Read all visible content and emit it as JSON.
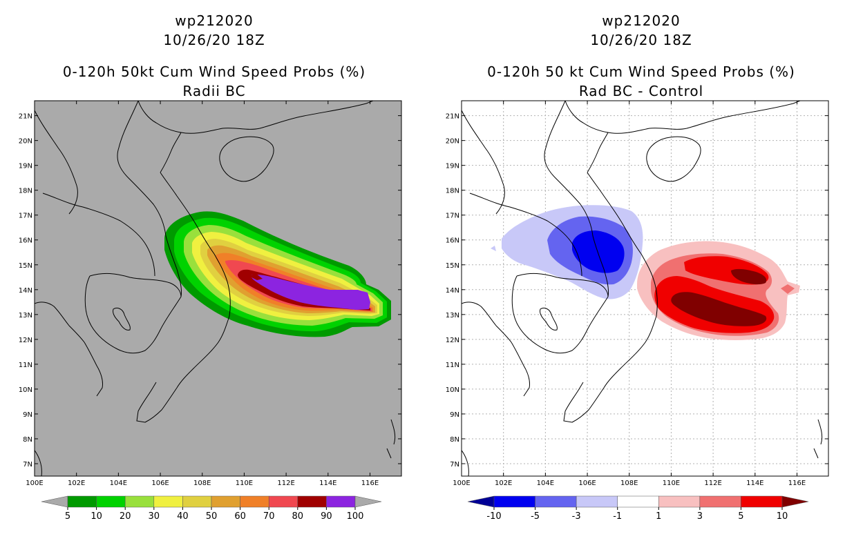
{
  "panels": [
    {
      "id": "left",
      "storm": "wp212020",
      "datetime": "10/26/20 18Z",
      "product": "0-120h 50kt Cum Wind Speed Probs (%)",
      "subtitle": "Radii BC",
      "background": "#aaaaaa",
      "grid": false,
      "colorbar": {
        "labels": [
          "5",
          "10",
          "20",
          "30",
          "40",
          "50",
          "60",
          "70",
          "80",
          "90",
          "100"
        ],
        "colors": [
          "#009a00",
          "#00d200",
          "#99e03c",
          "#f0f040",
          "#e0d040",
          "#e0a030",
          "#f08028",
          "#f04850",
          "#a00000",
          "#8c24e0"
        ],
        "end_colors": [
          "#aaaaaa",
          "#aaaaaa"
        ]
      }
    },
    {
      "id": "right",
      "storm": "wp212020",
      "datetime": "10/26/20 18Z",
      "product": "0-120h 50 kt Cum Wind Speed Probs (%)",
      "subtitle": "Rad BC - Control",
      "background": "#ffffff",
      "grid": true,
      "colorbar": {
        "labels": [
          "-10",
          "-5",
          "-3",
          "-1",
          "1",
          "3",
          "5",
          "10"
        ],
        "colors": [
          "#0000f0",
          "#6464f0",
          "#c8c8f8",
          "#ffffff",
          "#f8c0c0",
          "#f07070",
          "#f00000"
        ],
        "end_colors": [
          "#000096",
          "#800000"
        ]
      }
    }
  ],
  "axes": {
    "lon_labels": [
      "100E",
      "102E",
      "104E",
      "106E",
      "108E",
      "110E",
      "112E",
      "114E",
      "116E"
    ],
    "lat_labels": [
      "7N",
      "8N",
      "9N",
      "10N",
      "11N",
      "12N",
      "13N",
      "14N",
      "15N",
      "16N",
      "17N",
      "18N",
      "19N",
      "20N",
      "21N"
    ],
    "lon_range": [
      100,
      117.5
    ],
    "lat_range": [
      6.5,
      21.6
    ]
  },
  "fields": {
    "left_probability_band_values": [
      5,
      10,
      20,
      30,
      40,
      50,
      60,
      70,
      80,
      90
    ],
    "right_difference_values": [
      -10,
      -5,
      -3,
      -1,
      1,
      3,
      5,
      10
    ]
  }
}
